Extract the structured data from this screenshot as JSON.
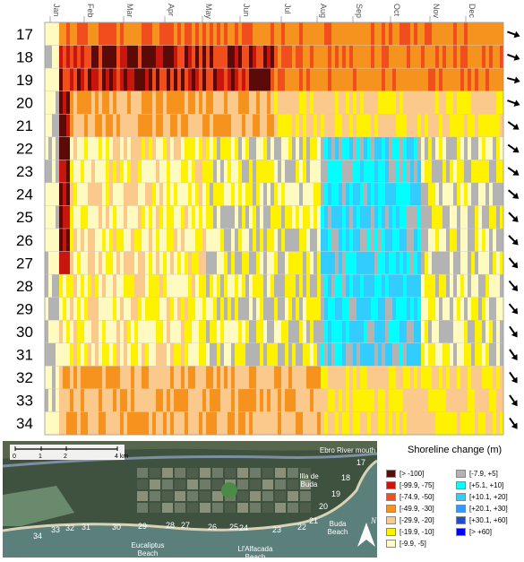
{
  "chart_data": {
    "type": "heatmap",
    "months": [
      "Jan",
      "Feb",
      "Mar",
      "Apr",
      "May",
      "Jun",
      "Jul",
      "Aug",
      "Sep",
      "Oct",
      "Nov",
      "Dec"
    ],
    "rows": [
      "17",
      "18",
      "19",
      "20",
      "21",
      "22",
      "23",
      "24",
      "25",
      "26",
      "27",
      "28",
      "29",
      "30",
      "31",
      "32",
      "33",
      "34"
    ],
    "legend_title": "Shoreline change (m)",
    "legend": [
      {
        "label": "[> -100]",
        "color": "#5c0a08"
      },
      {
        "label": "[-99.9, -75]",
        "color": "#c8160e"
      },
      {
        "label": "[-74.9, -50]",
        "color": "#f04e1c"
      },
      {
        "label": "[-49.9, -30]",
        "color": "#f6931f"
      },
      {
        "label": "[-29.9, -20]",
        "color": "#fbc98b"
      },
      {
        "label": "[-19.9, -10]",
        "color": "#fff200"
      },
      {
        "label": "[-9.9, -5]",
        "color": "#fffac0"
      },
      {
        "label": "[-7.9, +5]",
        "color": "#b3b3b3"
      },
      {
        "label": "[+5.1, +10]",
        "color": "#00ffff"
      },
      {
        "label": "[+10.1, +20]",
        "color": "#33ccff"
      },
      {
        "label": "[+20.1, +30]",
        "color": "#3399ff"
      },
      {
        "label": "[+30.1, +60]",
        "color": "#1a4fd1"
      },
      {
        "label": "[> +60]",
        "color": "#0000ff"
      }
    ],
    "arrows_dir_deg": [
      20,
      20,
      15,
      20,
      35,
      35,
      35,
      40,
      45,
      45,
      50,
      50,
      50,
      55,
      55,
      55,
      55,
      55
    ]
  },
  "map": {
    "scale_ticks": [
      "0",
      "1",
      "2",
      "4 km"
    ],
    "place_labels": {
      "ebro": "Ebro River mouth",
      "illa": "Illa de\nBuda",
      "buda": "Buda\nBeach",
      "eucaliptus": "Eucaliptus\nBeach",
      "alfacada": "Ll'Alfacada\nBeach"
    },
    "numbers": [
      "17",
      "18",
      "19",
      "20",
      "21",
      "22",
      "23",
      "24",
      "25",
      "26",
      "27",
      "28",
      "29",
      "30",
      "31",
      "32",
      "33",
      "34"
    ],
    "north_label": "N"
  }
}
